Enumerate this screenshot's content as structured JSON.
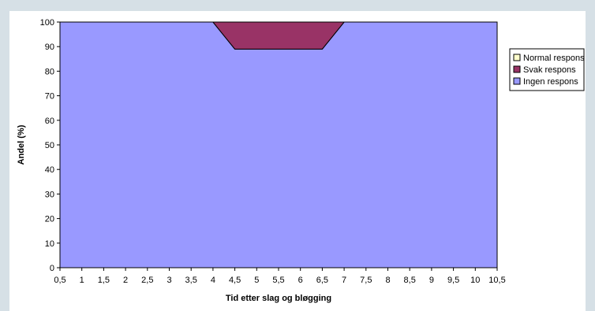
{
  "chart_data": {
    "type": "area",
    "stacked": true,
    "x": [
      0.5,
      1,
      1.5,
      2,
      2.5,
      3,
      3.5,
      4,
      4.5,
      5,
      5.5,
      6,
      6.5,
      7,
      7.5,
      8,
      8.5,
      9,
      9.5,
      10,
      10.5
    ],
    "x_tick_labels": [
      "0,5",
      "1",
      "1,5",
      "2",
      "2,5",
      "3",
      "3,5",
      "4",
      "4,5",
      "5",
      "5,5",
      "6",
      "6,5",
      "7",
      "7,5",
      "8",
      "8,5",
      "9",
      "9,5",
      "10",
      "10,5"
    ],
    "series": [
      {
        "name": "Ingen respons",
        "color": "#9999ff",
        "values": [
          100,
          100,
          100,
          100,
          100,
          100,
          100,
          100,
          89,
          89,
          89,
          89,
          89,
          100,
          100,
          100,
          100,
          100,
          100,
          100,
          100
        ]
      },
      {
        "name": "Svak respons",
        "color": "#993366",
        "values": [
          0,
          0,
          0,
          0,
          0,
          0,
          0,
          0,
          11,
          11,
          11,
          11,
          11,
          0,
          0,
          0,
          0,
          0,
          0,
          0,
          0
        ]
      },
      {
        "name": "Normal respons",
        "color": "#ffffcc",
        "values": [
          0,
          0,
          0,
          0,
          0,
          0,
          0,
          0,
          0,
          0,
          0,
          0,
          0,
          0,
          0,
          0,
          0,
          0,
          0,
          0,
          0
        ]
      }
    ],
    "legend_order": [
      "Normal respons",
      "Svak respons",
      "Ingen respons"
    ],
    "legend_position": "right",
    "xlabel": "Tid etter slag og bløgging",
    "ylabel": "Andel (%)",
    "ylim": [
      0,
      100
    ],
    "y_ticks": [
      0,
      10,
      20,
      30,
      40,
      50,
      60,
      70,
      80,
      90,
      100
    ],
    "grid": false
  }
}
